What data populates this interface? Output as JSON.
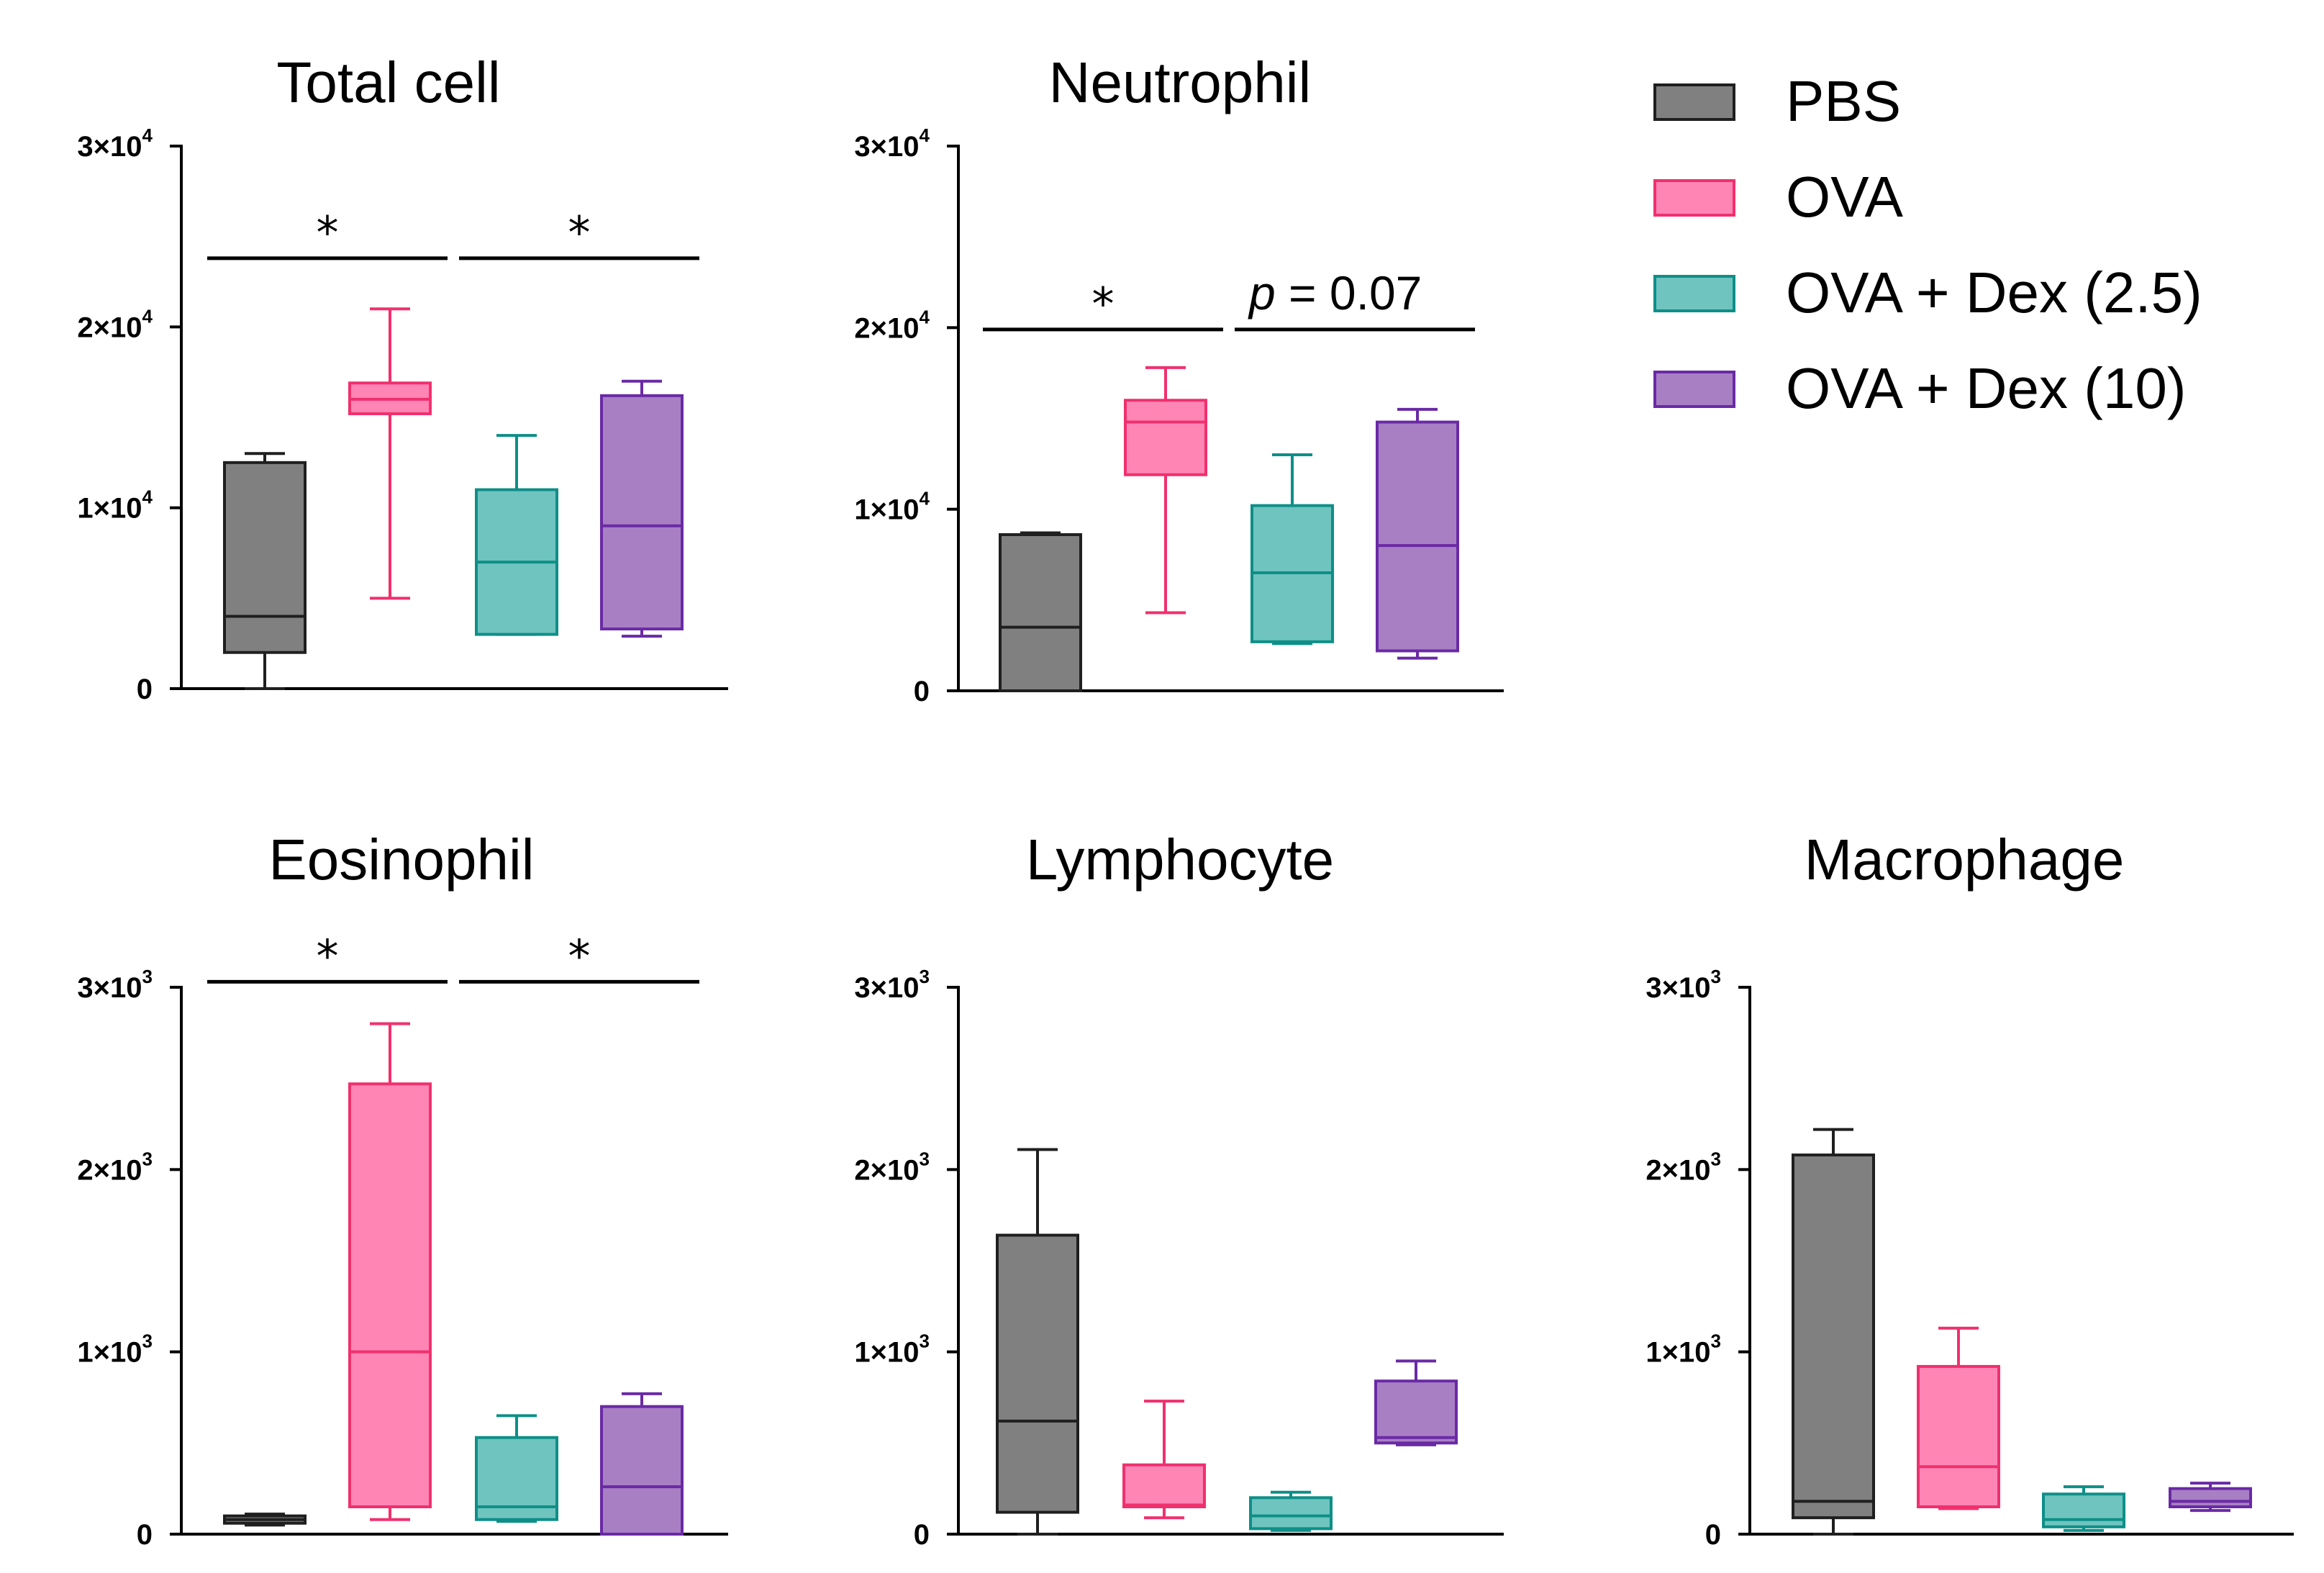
{
  "legend": [
    {
      "label": "PBS",
      "fill": "#808080",
      "stroke": "#1f1f1f"
    },
    {
      "label": "OVA",
      "fill": "#ff85b5",
      "stroke": "#f0306e"
    },
    {
      "label": "OVA + Dex (2.5)",
      "fill": "#6fc4c0",
      "stroke": "#0e8f87"
    },
    {
      "label": "OVA + Dex (10)",
      "fill": "#a97fc4",
      "stroke": "#6a2aa5"
    }
  ],
  "chart_data": [
    {
      "type": "box",
      "title": "Total cell",
      "ylim": [
        0,
        30000
      ],
      "yticks": [
        {
          "base": "0",
          "exp": ""
        },
        {
          "base": "1×10",
          "exp": "4"
        },
        {
          "base": "2×10",
          "exp": "4"
        },
        {
          "base": "3×10",
          "exp": "4"
        }
      ],
      "series": [
        {
          "name": "PBS",
          "min": 0,
          "q1": 2000,
          "median": 4000,
          "q3": 12500,
          "max": 13000
        },
        {
          "name": "OVA",
          "min": 5000,
          "q1": 15200,
          "median": 16000,
          "q3": 16900,
          "max": 21000
        },
        {
          "name": "OVA + Dex (2.5)",
          "min": 3000,
          "q1": 3000,
          "median": 7000,
          "q3": 11000,
          "max": 14000
        },
        {
          "name": "OVA + Dex (10)",
          "min": 2900,
          "q1": 3300,
          "median": 9000,
          "q3": 16200,
          "max": 17000
        }
      ],
      "annotations": [
        {
          "text": "*",
          "from": 0,
          "to": 1,
          "y": 23800
        },
        {
          "text": "*",
          "from": 2,
          "to": 3,
          "y": 23800
        }
      ]
    },
    {
      "type": "box",
      "title": "Neutrophil",
      "ylim": [
        0,
        30000
      ],
      "yticks": [
        {
          "base": "0",
          "exp": ""
        },
        {
          "base": "1×10",
          "exp": "4"
        },
        {
          "base": "2×10",
          "exp": "4"
        },
        {
          "base": "3×10",
          "exp": "4"
        }
      ],
      "series": [
        {
          "name": "PBS",
          "min": 0,
          "q1": 0,
          "median": 3500,
          "q3": 8600,
          "max": 8700
        },
        {
          "name": "OVA",
          "min": 4300,
          "q1": 11900,
          "median": 14800,
          "q3": 16000,
          "max": 17800
        },
        {
          "name": "OVA + Dex (2.5)",
          "min": 2600,
          "q1": 2700,
          "median": 6500,
          "q3": 10200,
          "max": 13000
        },
        {
          "name": "OVA + Dex (10)",
          "min": 1800,
          "q1": 2200,
          "median": 8000,
          "q3": 14800,
          "max": 15500
        }
      ],
      "annotations": [
        {
          "text": "*",
          "from": 0,
          "to": 1,
          "y": 19900
        },
        {
          "text": "p = 0.07",
          "from": 2,
          "to": 3,
          "y": 19900
        }
      ]
    },
    {
      "type": "box",
      "title": "Eosinophil",
      "ylim": [
        0,
        3000
      ],
      "yticks": [
        {
          "base": "0",
          "exp": ""
        },
        {
          "base": "1×10",
          "exp": "3"
        },
        {
          "base": "2×10",
          "exp": "3"
        },
        {
          "base": "3×10",
          "exp": "3"
        }
      ],
      "series": [
        {
          "name": "PBS",
          "min": 50,
          "q1": 60,
          "median": 80,
          "q3": 100,
          "max": 110
        },
        {
          "name": "OVA",
          "min": 80,
          "q1": 150,
          "median": 1000,
          "q3": 2470,
          "max": 2800
        },
        {
          "name": "OVA + Dex (2.5)",
          "min": 70,
          "q1": 80,
          "median": 150,
          "q3": 530,
          "max": 650
        },
        {
          "name": "OVA + Dex (10)",
          "min": 0,
          "q1": 0,
          "median": 260,
          "q3": 700,
          "max": 770
        }
      ],
      "annotations": [
        {
          "text": "*",
          "from": 0,
          "to": 1,
          "y": 3030
        },
        {
          "text": "*",
          "from": 2,
          "to": 3,
          "y": 3030
        }
      ]
    },
    {
      "type": "box",
      "title": "Lymphocyte",
      "ylim": [
        0,
        3000
      ],
      "yticks": [
        {
          "base": "0",
          "exp": ""
        },
        {
          "base": "1×10",
          "exp": "3"
        },
        {
          "base": "2×10",
          "exp": "3"
        },
        {
          "base": "3×10",
          "exp": "3"
        }
      ],
      "series": [
        {
          "name": "PBS",
          "min": 0,
          "q1": 120,
          "median": 620,
          "q3": 1640,
          "max": 2110
        },
        {
          "name": "OVA",
          "min": 90,
          "q1": 150,
          "median": 160,
          "q3": 380,
          "max": 730
        },
        {
          "name": "OVA + Dex (2.5)",
          "min": 20,
          "q1": 30,
          "median": 100,
          "q3": 200,
          "max": 230
        },
        {
          "name": "OVA + Dex (10)",
          "min": 490,
          "q1": 500,
          "median": 530,
          "q3": 840,
          "max": 950
        }
      ],
      "annotations": []
    },
    {
      "type": "box",
      "title": "Macrophage",
      "ylim": [
        0,
        3000
      ],
      "yticks": [
        {
          "base": "0",
          "exp": ""
        },
        {
          "base": "1×10",
          "exp": "3"
        },
        {
          "base": "2×10",
          "exp": "3"
        },
        {
          "base": "3×10",
          "exp": "3"
        }
      ],
      "series": [
        {
          "name": "PBS",
          "min": 0,
          "q1": 90,
          "median": 180,
          "q3": 2080,
          "max": 2220
        },
        {
          "name": "OVA",
          "min": 140,
          "q1": 150,
          "median": 370,
          "q3": 920,
          "max": 1130
        },
        {
          "name": "OVA + Dex (2.5)",
          "min": 20,
          "q1": 40,
          "median": 80,
          "q3": 220,
          "max": 260
        },
        {
          "name": "OVA + Dex (10)",
          "min": 130,
          "q1": 150,
          "median": 180,
          "q3": 250,
          "max": 280
        }
      ],
      "annotations": []
    }
  ]
}
